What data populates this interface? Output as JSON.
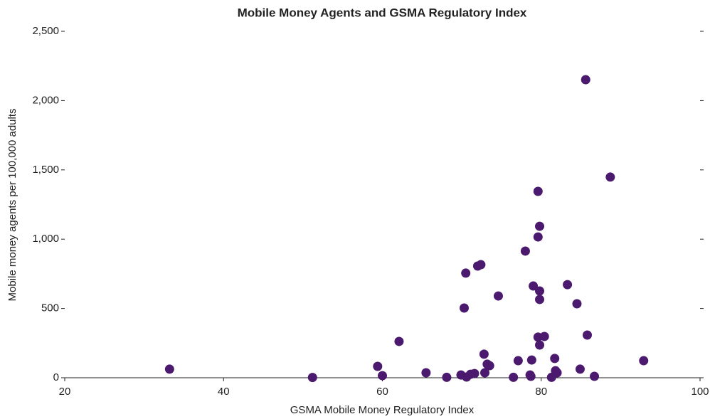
{
  "chart_data": {
    "type": "scatter",
    "title": "Mobile Money Agents and GSMA Regulatory Index",
    "x_label": "GSMA Mobile Money Regulatory Index",
    "y_label": "Mobile money agents per 100,000 adults",
    "color": "#4b1a6e",
    "xlim": [
      20,
      100
    ],
    "xticks": [
      20,
      40,
      60,
      80,
      100
    ],
    "ylim": [
      0,
      2500
    ],
    "yticks": [
      0,
      500,
      {
        "value": 1000,
        "label": "1,000"
      },
      {
        "value": 1500,
        "label": "1,500"
      },
      {
        "value": 2000,
        "label": "2,000"
      },
      {
        "value": 2500,
        "label": "2,500"
      }
    ],
    "x": [
      33.2,
      51.2,
      59.4,
      60.0,
      62.1,
      65.5,
      68.1,
      69.9,
      70.3,
      70.5,
      70.6,
      71.1,
      71.6,
      72.0,
      72.4,
      72.8,
      72.9,
      73.2,
      73.5,
      74.6,
      76.5,
      77.1,
      78.0,
      78.6,
      78.7,
      78.8,
      79.0,
      79.6,
      79.6,
      79.6,
      79.8,
      79.8,
      79.8,
      79.8,
      80.4,
      81.3,
      81.7,
      81.8,
      82.0,
      83.3,
      84.5,
      84.9,
      85.6,
      85.8,
      86.7,
      88.7,
      92.9
    ],
    "values": [
      62,
      2,
      82,
      15,
      262,
      36,
      3,
      20,
      503,
      755,
      5,
      25,
      30,
      806,
      816,
      170,
      36,
      98,
      87,
      590,
      3,
      123,
      914,
      20,
      10,
      128,
      662,
      1345,
      1016,
      293,
      1093,
      626,
      565,
      236,
      298,
      3,
      139,
      51,
      36,
      672,
      534,
      62,
      2151,
      308,
      10,
      1448,
      123
    ]
  }
}
